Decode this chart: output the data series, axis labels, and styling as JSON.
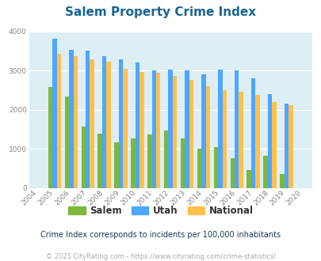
{
  "title": "Salem Property Crime Index",
  "years": [
    "2004",
    "2005",
    "2006",
    "2007",
    "2008",
    "2009",
    "2010",
    "2011",
    "2012",
    "2013",
    "2014",
    "2015",
    "2016",
    "2017",
    "2018",
    "2019",
    "2020"
  ],
  "salem": [
    0,
    2570,
    2340,
    1560,
    1380,
    1160,
    1260,
    1360,
    1460,
    1260,
    1010,
    1040,
    760,
    460,
    820,
    350,
    0
  ],
  "utah": [
    0,
    3820,
    3520,
    3500,
    3370,
    3290,
    3210,
    3010,
    3020,
    3000,
    2900,
    3020,
    3000,
    2790,
    2400,
    2160,
    0
  ],
  "national": [
    0,
    3430,
    3360,
    3290,
    3220,
    3050,
    2960,
    2940,
    2870,
    2760,
    2600,
    2500,
    2450,
    2380,
    2190,
    2110,
    0
  ],
  "salem_color": "#7db83a",
  "utah_color": "#4da6ff",
  "national_color": "#ffc04c",
  "bg_color": "#ddeef5",
  "ylim": [
    0,
    4000
  ],
  "yticks": [
    0,
    1000,
    2000,
    3000,
    4000
  ],
  "legend_labels": [
    "Salem",
    "Utah",
    "National"
  ],
  "subtitle": "Crime Index corresponds to incidents per 100,000 inhabitants",
  "footer": "© 2025 CityRating.com - https://www.cityrating.com/crime-statistics/",
  "title_color": "#1a6496",
  "subtitle_color": "#1a3a5c",
  "footer_color": "#aaaaaa",
  "legend_text_color": "#333333",
  "tick_color": "#888888"
}
